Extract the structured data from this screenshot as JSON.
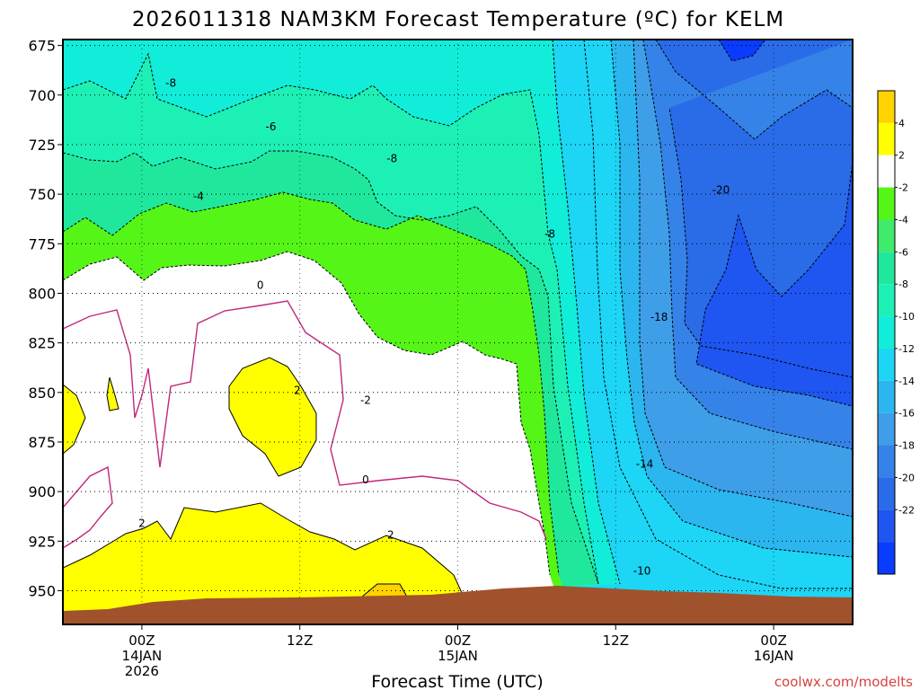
{
  "chart_data": {
    "type": "heatmap",
    "title": "2026011318 NAM3KM Forecast Temperature (ºC) for KELM",
    "xlabel": "Forecast Time (UTC)",
    "ylabel": "",
    "y_scale": "pressure (hPa), inverted",
    "ylim": [
      967,
      672
    ],
    "y_ticks": [
      675,
      700,
      725,
      750,
      775,
      800,
      825,
      850,
      875,
      900,
      925,
      950
    ],
    "xlim_hours_from_first_tick": [
      -6,
      54
    ],
    "x_ticks": [
      {
        "hours": 0,
        "lines": [
          "00Z",
          "14JAN",
          "2026"
        ]
      },
      {
        "hours": 12,
        "lines": [
          "12Z"
        ]
      },
      {
        "hours": 24,
        "lines": [
          "00Z",
          "15JAN"
        ]
      },
      {
        "hours": 36,
        "lines": [
          "12Z"
        ]
      },
      {
        "hours": 48,
        "lines": [
          "00Z",
          "16JAN"
        ]
      }
    ],
    "grid": true,
    "colorbar": {
      "placement": "right",
      "levels": [
        -24,
        -22,
        -20,
        -18,
        -16,
        -14,
        -12,
        -10,
        -8,
        -6,
        -4,
        -2,
        2,
        4,
        6
      ],
      "labels": [
        "4",
        "2",
        "-2",
        "-4",
        "-6",
        "-8",
        "-10",
        "-12",
        "-14",
        "-16",
        "-18",
        "-20",
        "-22"
      ],
      "colors": [
        "#0a3cff",
        "#1f55f0",
        "#2a6be8",
        "#3583e8",
        "#3f9ee8",
        "#2bb6ef",
        "#1dd5f5",
        "#11edd8",
        "#1df0b5",
        "#1fe89d",
        "#40ea6a",
        "#55f518",
        "#ffffff",
        "#ffff00",
        "#ffd200"
      ]
    },
    "contour_labels": [
      {
        "text": "-8",
        "hours": 2.2,
        "p": 694
      },
      {
        "text": "-6",
        "hours": 9.8,
        "p": 716
      },
      {
        "text": "-4",
        "hours": 4.3,
        "p": 751
      },
      {
        "text": "0",
        "hours": 9.0,
        "p": 796
      },
      {
        "text": "2",
        "hours": 11.8,
        "p": 849
      },
      {
        "text": "-2",
        "hours": 17.0,
        "p": 854
      },
      {
        "text": "-8",
        "hours": 19.0,
        "p": 732
      },
      {
        "text": "-8",
        "hours": 31.0,
        "p": 770
      },
      {
        "text": "0",
        "hours": 17.0,
        "p": 894
      },
      {
        "text": "2",
        "hours": 0.0,
        "p": 916
      },
      {
        "text": "2",
        "hours": 18.9,
        "p": 922
      },
      {
        "text": "-10",
        "hours": 38.0,
        "p": 940
      },
      {
        "text": "-14",
        "hours": 38.2,
        "p": 886
      },
      {
        "text": "-18",
        "hours": 39.3,
        "p": 812
      },
      {
        "text": "-20",
        "hours": 44.0,
        "p": 748
      }
    ],
    "watermark": "coolwx.com/modelts"
  },
  "colors": {
    "terrain": "#a0522d",
    "zero_contour": "#c0287a"
  }
}
